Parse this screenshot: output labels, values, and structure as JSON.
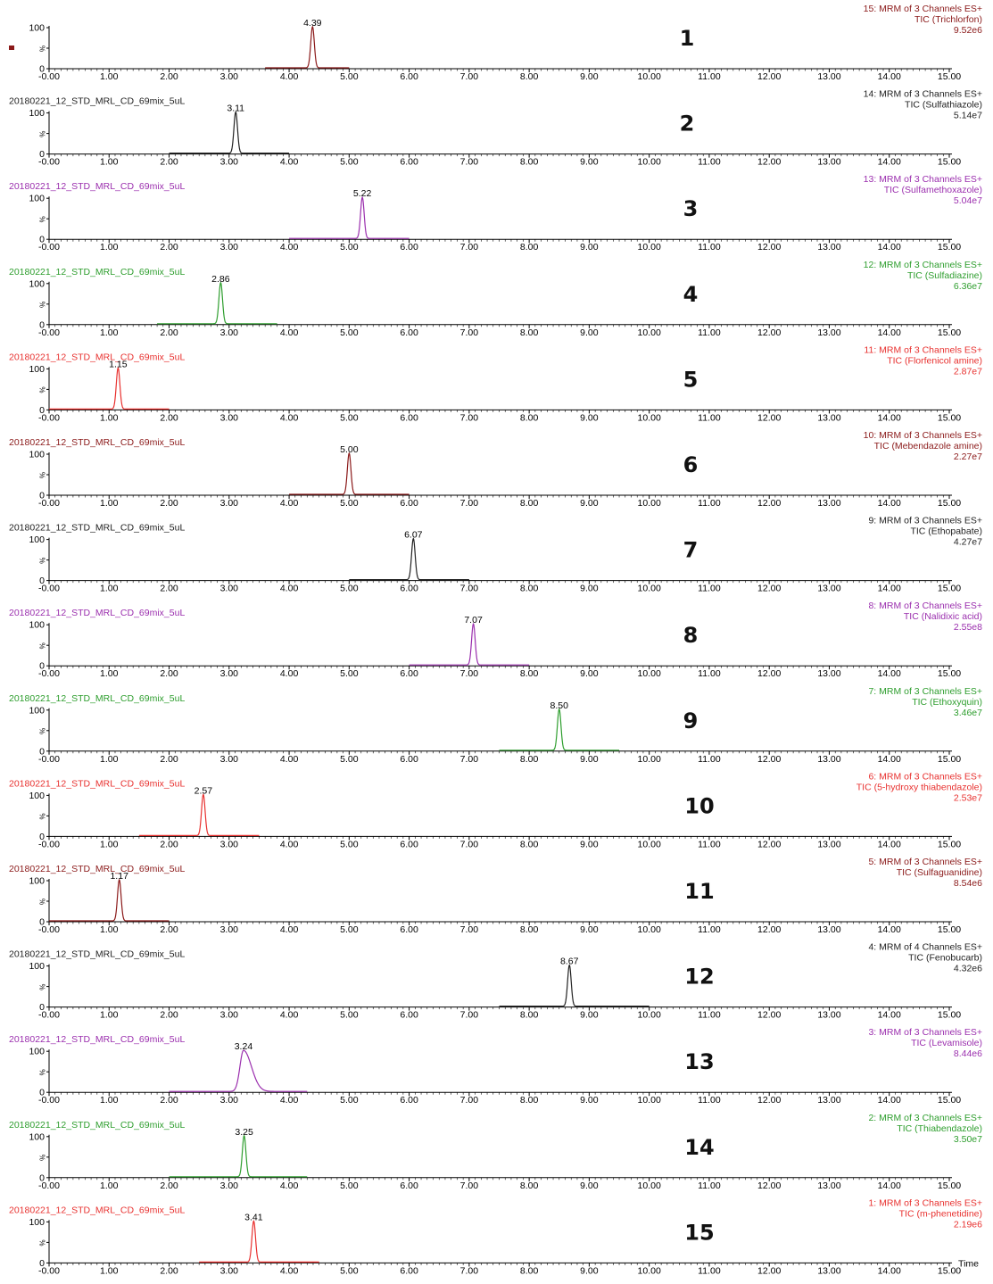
{
  "figure": {
    "x_axis_label": "Time",
    "y_tick_labels": [
      "100",
      "%",
      "0"
    ],
    "legend_marker_color": "#8b1a1a"
  },
  "chart_data": [
    {
      "type": "line",
      "panel_number": "1",
      "file_label": "",
      "color": "#8b1a1a",
      "channel_line": "15: MRM of 3 Channels ES+",
      "tic_line": "TIC (Trichlorfon)",
      "intensity": "9.52e6",
      "peak_time": 4.39,
      "peak_label": "4.39",
      "baseline_range": [
        3.6,
        5.0
      ],
      "xlim": [
        -0.3,
        15.3
      ],
      "x_ticks": [
        "-0.00",
        "1.00",
        "2.00",
        "3.00",
        "4.00",
        "5.00",
        "6.00",
        "7.00",
        "8.00",
        "9.00",
        "10.00",
        "11.00",
        "12.00",
        "13.00",
        "14.00",
        "15.00"
      ]
    },
    {
      "type": "line",
      "panel_number": "2",
      "file_label": "20180221_12_STD_MRL_CD_69mix_5uL",
      "color": "#222222",
      "channel_line": "14: MRM of 3 Channels ES+",
      "tic_line": "TIC (Sulfathiazole)",
      "intensity": "5.14e7",
      "peak_time": 3.11,
      "peak_label": "3.11",
      "baseline_range": [
        2.0,
        4.0
      ],
      "xlim": [
        -0.3,
        15.3
      ],
      "x_ticks": [
        "-0.00",
        "1.00",
        "2.00",
        "3.00",
        "4.00",
        "5.00",
        "6.00",
        "7.00",
        "8.00",
        "9.00",
        "10.00",
        "11.00",
        "12.00",
        "13.00",
        "14.00",
        "15.00"
      ]
    },
    {
      "type": "line",
      "panel_number": "3",
      "file_label": "20180221_12_STD_MRL_CD_69mix_5uL",
      "color": "#9b2fae",
      "channel_line": "13: MRM of 3 Channels ES+",
      "tic_line": "TIC (Sulfamethoxazole)",
      "intensity": "5.04e7",
      "peak_time": 5.22,
      "peak_label": "5.22",
      "baseline_range": [
        4.0,
        6.0
      ],
      "xlim": [
        -0.3,
        15.3
      ],
      "x_ticks": [
        "-0.00",
        "1.00",
        "2.00",
        "3.00",
        "4.00",
        "5.00",
        "6.00",
        "7.00",
        "8.00",
        "9.00",
        "10.00",
        "11.00",
        "12.00",
        "13.00",
        "14.00",
        "15.00"
      ]
    },
    {
      "type": "line",
      "panel_number": "4",
      "file_label": "20180221_12_STD_MRL_CD_69mix_5uL",
      "color": "#2e9e2e",
      "channel_line": "12: MRM of 3 Channels ES+",
      "tic_line": "TIC (Sulfadiazine)",
      "intensity": "6.36e7",
      "peak_time": 2.86,
      "peak_label": "2.86",
      "baseline_range": [
        1.8,
        3.8
      ],
      "xlim": [
        -0.3,
        15.3
      ],
      "x_ticks": [
        "-0.00",
        "1.00",
        "2.00",
        "3.00",
        "4.00",
        "5.00",
        "6.00",
        "7.00",
        "8.00",
        "9.00",
        "10.00",
        "11.00",
        "12.00",
        "13.00",
        "14.00",
        "15.00"
      ]
    },
    {
      "type": "line",
      "panel_number": "5",
      "file_label": "20180221_12_STD_MRL_CD_69mix_5uL",
      "color": "#e8312f",
      "channel_line": "11: MRM of 3 Channels ES+",
      "tic_line": "TIC (Florfenicol amine)",
      "intensity": "2.87e7",
      "peak_time": 1.15,
      "peak_label": "1.15",
      "baseline_range": [
        0.0,
        2.0
      ],
      "xlim": [
        -0.3,
        15.3
      ],
      "x_ticks": [
        "-0.00",
        "1.00",
        "2.00",
        "3.00",
        "4.00",
        "5.00",
        "6.00",
        "7.00",
        "8.00",
        "9.00",
        "10.00",
        "11.00",
        "12.00",
        "13.00",
        "14.00",
        "15.00"
      ]
    },
    {
      "type": "line",
      "panel_number": "6",
      "file_label": "20180221_12_STD_MRL_CD_69mix_5uL",
      "color": "#8b1a1a",
      "channel_line": "10: MRM of 3 Channels ES+",
      "tic_line": "TIC (Mebendazole amine)",
      "intensity": "2.27e7",
      "peak_time": 5.0,
      "peak_label": "5.00",
      "baseline_range": [
        4.0,
        6.0
      ],
      "xlim": [
        -0.3,
        15.3
      ],
      "x_ticks": [
        "-0.00",
        "1.00",
        "2.00",
        "3.00",
        "4.00",
        "5.00",
        "6.00",
        "7.00",
        "8.00",
        "9.00",
        "10.00",
        "11.00",
        "12.00",
        "13.00",
        "14.00",
        "15.00"
      ]
    },
    {
      "type": "line",
      "panel_number": "7",
      "file_label": "20180221_12_STD_MRL_CD_69mix_5uL",
      "color": "#222222",
      "channel_line": "9: MRM of 3 Channels ES+",
      "tic_line": "TIC (Ethopabate)",
      "intensity": "4.27e7",
      "peak_time": 6.07,
      "peak_label": "6.07",
      "baseline_range": [
        5.0,
        7.0
      ],
      "xlim": [
        -0.3,
        15.3
      ],
      "x_ticks": [
        "-0.00",
        "1.00",
        "2.00",
        "3.00",
        "4.00",
        "5.00",
        "6.00",
        "7.00",
        "8.00",
        "9.00",
        "10.00",
        "11.00",
        "12.00",
        "13.00",
        "14.00",
        "15.00"
      ]
    },
    {
      "type": "line",
      "panel_number": "8",
      "file_label": "20180221_12_STD_MRL_CD_69mix_5uL",
      "color": "#9b2fae",
      "channel_line": "8: MRM of 3 Channels ES+",
      "tic_line": "TIC (Nalidixic acid)",
      "intensity": "2.55e8",
      "peak_time": 7.07,
      "peak_label": "7.07",
      "baseline_range": [
        6.0,
        8.0
      ],
      "xlim": [
        -0.3,
        15.3
      ],
      "x_ticks": [
        "-0.00",
        "1.00",
        "2.00",
        "3.00",
        "4.00",
        "5.00",
        "6.00",
        "7.00",
        "8.00",
        "9.00",
        "10.00",
        "11.00",
        "12.00",
        "13.00",
        "14.00",
        "15.00"
      ]
    },
    {
      "type": "line",
      "panel_number": "9",
      "file_label": "20180221_12_STD_MRL_CD_69mix_5uL",
      "color": "#2e9e2e",
      "channel_line": "7: MRM of 3 Channels ES+",
      "tic_line": "TIC (Ethoxyquin)",
      "intensity": "3.46e7",
      "peak_time": 8.5,
      "peak_label": "8.50",
      "baseline_range": [
        7.5,
        9.5
      ],
      "xlim": [
        -0.3,
        15.3
      ],
      "x_ticks": [
        "-0.00",
        "1.00",
        "2.00",
        "3.00",
        "4.00",
        "5.00",
        "6.00",
        "7.00",
        "8.00",
        "9.00",
        "10.00",
        "11.00",
        "12.00",
        "13.00",
        "14.00",
        "15.00"
      ]
    },
    {
      "type": "line",
      "panel_number": "10",
      "file_label": "20180221_12_STD_MRL_CD_69mix_5uL",
      "color": "#e8312f",
      "channel_line": "6: MRM of 3 Channels ES+",
      "tic_line": "TIC (5-hydroxy thiabendazole)",
      "intensity": "2.53e7",
      "peak_time": 2.57,
      "peak_label": "2.57",
      "baseline_range": [
        1.5,
        3.5
      ],
      "xlim": [
        -0.3,
        15.3
      ],
      "x_ticks": [
        "-0.00",
        "1.00",
        "2.00",
        "3.00",
        "4.00",
        "5.00",
        "6.00",
        "7.00",
        "8.00",
        "9.00",
        "10.00",
        "11.00",
        "12.00",
        "13.00",
        "14.00",
        "15.00"
      ]
    },
    {
      "type": "line",
      "panel_number": "11",
      "file_label": "20180221_12_STD_MRL_CD_69mix_5uL",
      "color": "#8b1a1a",
      "channel_line": "5: MRM of 3 Channels ES+",
      "tic_line": "TIC (Sulfaguanidine)",
      "intensity": "8.54e6",
      "peak_time": 1.17,
      "peak_label": "1.17",
      "baseline_range": [
        0.0,
        2.0
      ],
      "xlim": [
        -0.3,
        15.3
      ],
      "x_ticks": [
        "-0.00",
        "1.00",
        "2.00",
        "3.00",
        "4.00",
        "5.00",
        "6.00",
        "7.00",
        "8.00",
        "9.00",
        "10.00",
        "11.00",
        "12.00",
        "13.00",
        "14.00",
        "15.00"
      ]
    },
    {
      "type": "line",
      "panel_number": "12",
      "file_label": "20180221_12_STD_MRL_CD_69mix_5uL",
      "color": "#222222",
      "channel_line": "4: MRM of 4 Channels ES+",
      "tic_line": "TIC (Fenobucarb)",
      "intensity": "4.32e6",
      "peak_time": 8.67,
      "peak_label": "8.67",
      "baseline_range": [
        7.5,
        10.0
      ],
      "xlim": [
        -0.3,
        15.3
      ],
      "x_ticks": [
        "-0.00",
        "1.00",
        "2.00",
        "3.00",
        "4.00",
        "5.00",
        "6.00",
        "7.00",
        "8.00",
        "9.00",
        "10.00",
        "11.00",
        "12.00",
        "13.00",
        "14.00",
        "15.00"
      ]
    },
    {
      "type": "line",
      "panel_number": "13",
      "file_label": "20180221_12_STD_MRL_CD_69mix_5uL",
      "color": "#9b2fae",
      "channel_line": "3: MRM of 3 Channels ES+",
      "tic_line": "TIC (Levamisole)",
      "intensity": "8.44e6",
      "peak_time": 3.24,
      "peak_label": "3.24",
      "baseline_range": [
        2.0,
        4.3
      ],
      "xlim": [
        -0.3,
        15.3
      ],
      "x_ticks": [
        "-0.00",
        "1.00",
        "2.00",
        "3.00",
        "4.00",
        "5.00",
        "6.00",
        "7.00",
        "8.00",
        "9.00",
        "10.00",
        "11.00",
        "12.00",
        "13.00",
        "14.00",
        "15.00"
      ]
    },
    {
      "type": "line",
      "panel_number": "14",
      "file_label": "20180221_12_STD_MRL_CD_69mix_5uL",
      "color": "#2e9e2e",
      "channel_line": "2: MRM of 3 Channels ES+",
      "tic_line": "TIC (Thiabendazole)",
      "intensity": "3.50e7",
      "peak_time": 3.25,
      "peak_label": "3.25",
      "baseline_range": [
        2.0,
        4.3
      ],
      "xlim": [
        -0.3,
        15.3
      ],
      "x_ticks": [
        "-0.00",
        "1.00",
        "2.00",
        "3.00",
        "4.00",
        "5.00",
        "6.00",
        "7.00",
        "8.00",
        "9.00",
        "10.00",
        "11.00",
        "12.00",
        "13.00",
        "14.00",
        "15.00"
      ]
    },
    {
      "type": "line",
      "panel_number": "15",
      "file_label": "20180221_12_STD_MRL_CD_69mix_5uL",
      "color": "#e8312f",
      "channel_line": "1: MRM of 3 Channels ES+",
      "tic_line": "TIC (m-phenetidine)",
      "intensity": "2.19e6",
      "peak_time": 3.41,
      "peak_label": "3.41",
      "baseline_range": [
        2.5,
        4.5
      ],
      "xlim": [
        -0.3,
        15.3
      ],
      "x_ticks": [
        "-0.00",
        "1.00",
        "2.00",
        "3.00",
        "4.00",
        "5.00",
        "6.00",
        "7.00",
        "8.00",
        "9.00",
        "10.00",
        "11.00",
        "12.00",
        "13.00",
        "14.00",
        "15.00"
      ]
    }
  ]
}
